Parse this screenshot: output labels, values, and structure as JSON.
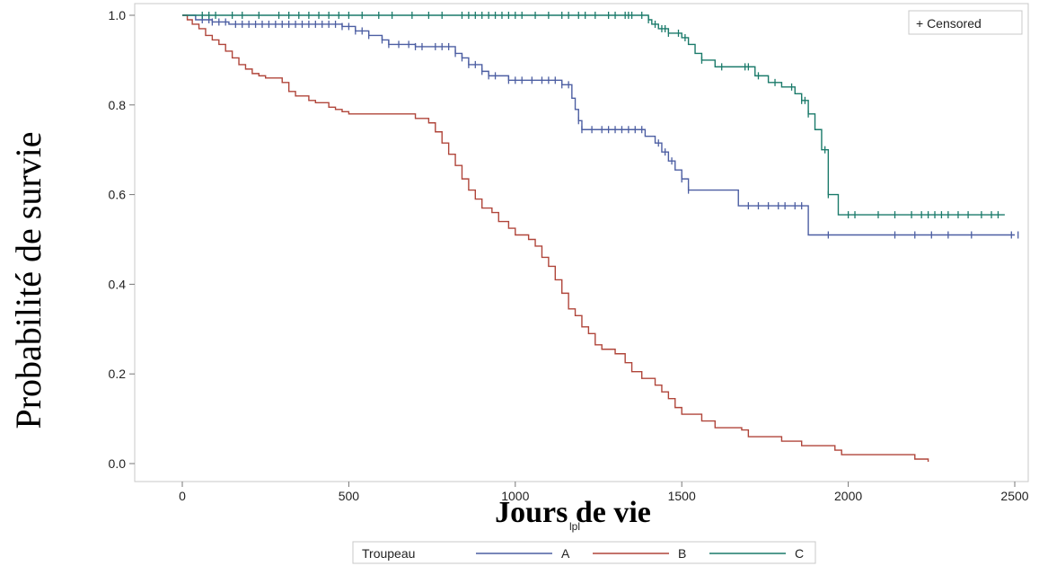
{
  "chart_data": {
    "type": "line",
    "subtype": "kaplan-meier step",
    "xlabel": "Jours de vie",
    "x_variable": "lpl",
    "ylabel": "Probabilité de survie",
    "xlim": [
      0,
      2500
    ],
    "ylim": [
      0.0,
      1.0
    ],
    "x_ticks": [
      "0",
      "500",
      "1000",
      "1500",
      "2000",
      "2500"
    ],
    "y_ticks": [
      "0.0",
      "0.2",
      "0.4",
      "0.6",
      "0.8",
      "1.0"
    ],
    "censored_label": "+ Censored",
    "legend": {
      "title": "Troupeau",
      "placement": "bottom"
    },
    "series": [
      {
        "name": "A",
        "color": "#4c5ea2",
        "steps": [
          [
            0,
            1.0
          ],
          [
            40,
            0.99
          ],
          [
            90,
            0.985
          ],
          [
            140,
            0.98
          ],
          [
            480,
            0.975
          ],
          [
            520,
            0.965
          ],
          [
            560,
            0.955
          ],
          [
            600,
            0.945
          ],
          [
            620,
            0.935
          ],
          [
            700,
            0.93
          ],
          [
            820,
            0.915
          ],
          [
            840,
            0.905
          ],
          [
            860,
            0.89
          ],
          [
            900,
            0.875
          ],
          [
            920,
            0.865
          ],
          [
            980,
            0.855
          ],
          [
            1140,
            0.845
          ],
          [
            1170,
            0.815
          ],
          [
            1180,
            0.79
          ],
          [
            1190,
            0.765
          ],
          [
            1200,
            0.745
          ],
          [
            1390,
            0.73
          ],
          [
            1420,
            0.715
          ],
          [
            1440,
            0.695
          ],
          [
            1460,
            0.675
          ],
          [
            1480,
            0.655
          ],
          [
            1500,
            0.635
          ],
          [
            1520,
            0.61
          ],
          [
            1670,
            0.575
          ],
          [
            1880,
            0.51
          ],
          [
            2500,
            0.51
          ]
        ],
        "censor_x": [
          60,
          80,
          90,
          110,
          130,
          160,
          180,
          200,
          220,
          240,
          260,
          280,
          300,
          320,
          340,
          360,
          380,
          400,
          420,
          440,
          460,
          480,
          500,
          520,
          540,
          560,
          600,
          620,
          650,
          680,
          700,
          720,
          760,
          780,
          800,
          820,
          840,
          860,
          880,
          900,
          920,
          940,
          980,
          1000,
          1020,
          1050,
          1080,
          1100,
          1120,
          1140,
          1160,
          1190,
          1200,
          1230,
          1260,
          1280,
          1300,
          1320,
          1340,
          1360,
          1380,
          1430,
          1450,
          1470,
          1500,
          1520,
          1700,
          1730,
          1760,
          1790,
          1810,
          1840,
          1860,
          1940,
          2140,
          2200,
          2250,
          2300,
          2370,
          2490,
          2510
        ]
      },
      {
        "name": "B",
        "color": "#b0453a",
        "steps": [
          [
            0,
            1.0
          ],
          [
            15,
            0.99
          ],
          [
            30,
            0.98
          ],
          [
            50,
            0.97
          ],
          [
            70,
            0.955
          ],
          [
            90,
            0.945
          ],
          [
            110,
            0.935
          ],
          [
            130,
            0.92
          ],
          [
            150,
            0.905
          ],
          [
            170,
            0.89
          ],
          [
            190,
            0.88
          ],
          [
            210,
            0.87
          ],
          [
            230,
            0.865
          ],
          [
            250,
            0.86
          ],
          [
            300,
            0.85
          ],
          [
            320,
            0.83
          ],
          [
            340,
            0.82
          ],
          [
            380,
            0.81
          ],
          [
            400,
            0.805
          ],
          [
            440,
            0.795
          ],
          [
            460,
            0.79
          ],
          [
            480,
            0.785
          ],
          [
            500,
            0.78
          ],
          [
            700,
            0.77
          ],
          [
            740,
            0.76
          ],
          [
            760,
            0.74
          ],
          [
            780,
            0.715
          ],
          [
            800,
            0.69
          ],
          [
            820,
            0.665
          ],
          [
            840,
            0.635
          ],
          [
            860,
            0.61
          ],
          [
            880,
            0.59
          ],
          [
            900,
            0.57
          ],
          [
            930,
            0.56
          ],
          [
            950,
            0.54
          ],
          [
            980,
            0.525
          ],
          [
            1000,
            0.51
          ],
          [
            1040,
            0.5
          ],
          [
            1060,
            0.485
          ],
          [
            1080,
            0.46
          ],
          [
            1100,
            0.44
          ],
          [
            1120,
            0.41
          ],
          [
            1140,
            0.38
          ],
          [
            1160,
            0.345
          ],
          [
            1180,
            0.33
          ],
          [
            1200,
            0.305
          ],
          [
            1220,
            0.29
          ],
          [
            1240,
            0.265
          ],
          [
            1260,
            0.255
          ],
          [
            1300,
            0.245
          ],
          [
            1330,
            0.225
          ],
          [
            1350,
            0.205
          ],
          [
            1380,
            0.19
          ],
          [
            1420,
            0.175
          ],
          [
            1440,
            0.16
          ],
          [
            1460,
            0.145
          ],
          [
            1480,
            0.125
          ],
          [
            1500,
            0.11
          ],
          [
            1560,
            0.095
          ],
          [
            1600,
            0.08
          ],
          [
            1680,
            0.075
          ],
          [
            1700,
            0.06
          ],
          [
            1800,
            0.05
          ],
          [
            1860,
            0.04
          ],
          [
            1960,
            0.03
          ],
          [
            1980,
            0.02
          ],
          [
            2200,
            0.01
          ],
          [
            2240,
            0.004
          ]
        ],
        "censor_x": []
      },
      {
        "name": "C",
        "color": "#1a7a6a",
        "steps": [
          [
            0,
            1.0
          ],
          [
            1400,
            0.99
          ],
          [
            1410,
            0.98
          ],
          [
            1430,
            0.97
          ],
          [
            1460,
            0.96
          ],
          [
            1500,
            0.95
          ],
          [
            1520,
            0.935
          ],
          [
            1540,
            0.915
          ],
          [
            1560,
            0.9
          ],
          [
            1600,
            0.885
          ],
          [
            1720,
            0.865
          ],
          [
            1760,
            0.85
          ],
          [
            1800,
            0.84
          ],
          [
            1840,
            0.825
          ],
          [
            1860,
            0.81
          ],
          [
            1880,
            0.78
          ],
          [
            1900,
            0.745
          ],
          [
            1920,
            0.7
          ],
          [
            1940,
            0.6
          ],
          [
            1970,
            0.555
          ],
          [
            2470,
            0.555
          ]
        ],
        "censor_x": [
          60,
          80,
          100,
          150,
          180,
          230,
          290,
          320,
          350,
          380,
          410,
          440,
          470,
          500,
          540,
          590,
          630,
          690,
          740,
          780,
          840,
          860,
          880,
          900,
          920,
          940,
          960,
          980,
          1000,
          1020,
          1060,
          1100,
          1140,
          1160,
          1190,
          1210,
          1240,
          1280,
          1300,
          1330,
          1340,
          1350,
          1380,
          1400,
          1420,
          1440,
          1450,
          1460,
          1490,
          1510,
          1560,
          1620,
          1690,
          1700,
          1730,
          1780,
          1830,
          1860,
          1870,
          1880,
          1930,
          1940,
          2000,
          2020,
          2090,
          2140,
          2190,
          2220,
          2240,
          2260,
          2280,
          2300,
          2330,
          2360,
          2400,
          2430,
          2450
        ]
      }
    ]
  }
}
